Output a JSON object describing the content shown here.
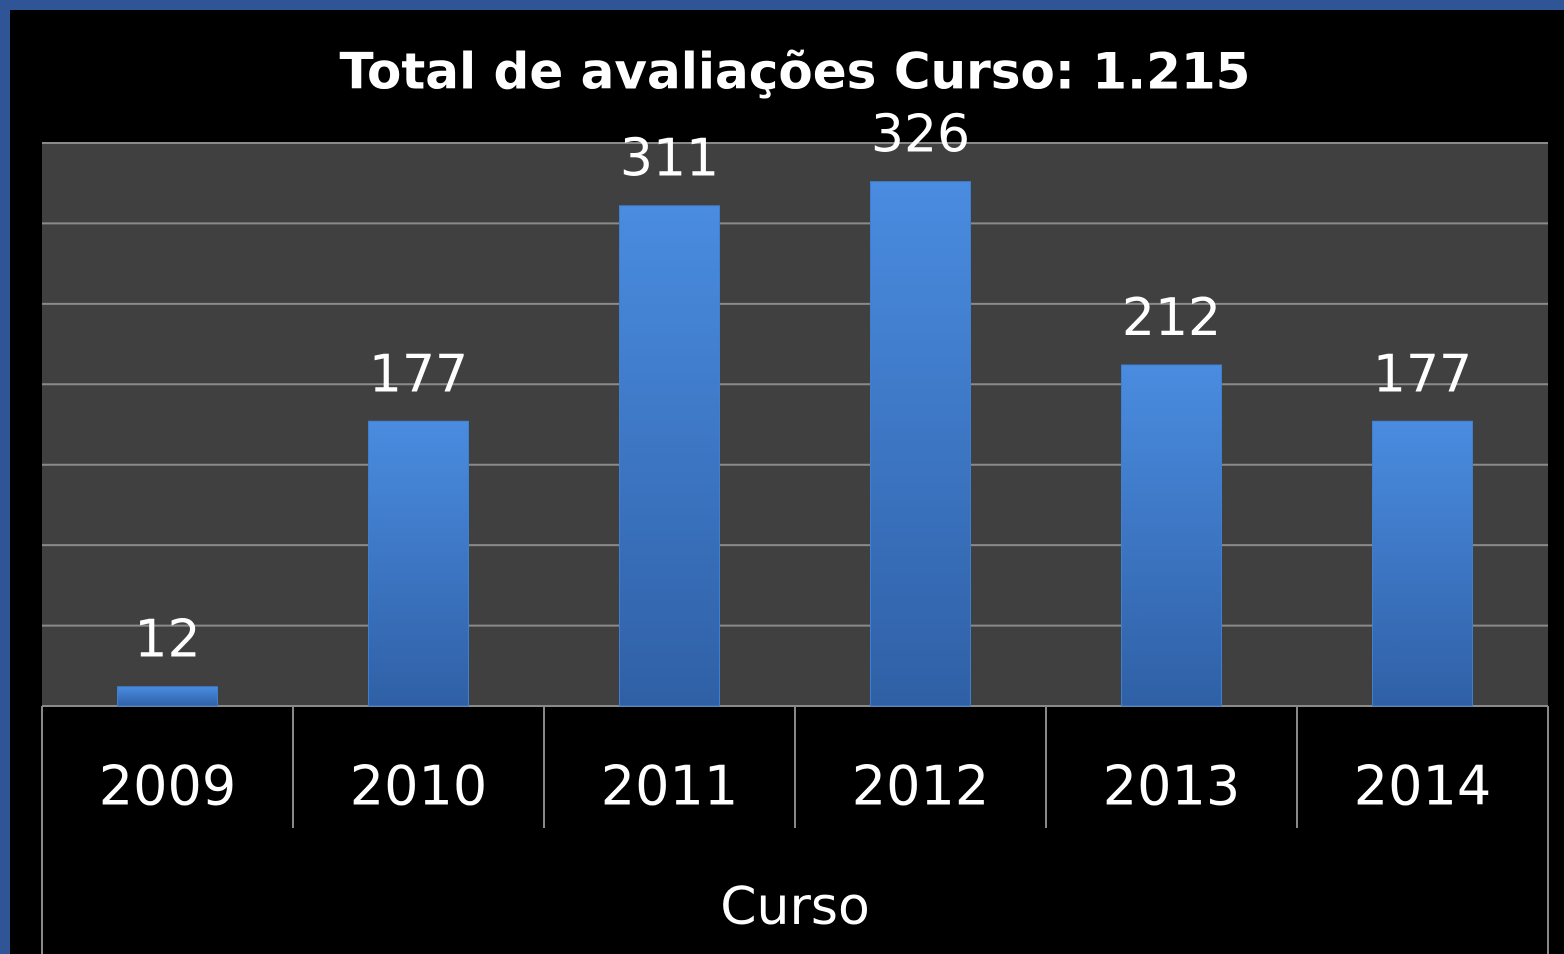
{
  "chart_data": {
    "type": "bar",
    "title": "Total de avaliações Curso: 1.215",
    "categories": [
      "2009",
      "2010",
      "2011",
      "2012",
      "2013",
      "2014"
    ],
    "values": [
      12,
      177,
      311,
      326,
      212,
      177
    ],
    "color": "#3f7fd0",
    "xlabel": "Curso",
    "ylim": [
      0,
      350
    ],
    "yticks": [
      0,
      50,
      100,
      150,
      200,
      250,
      300,
      350
    ],
    "grid": true
  }
}
